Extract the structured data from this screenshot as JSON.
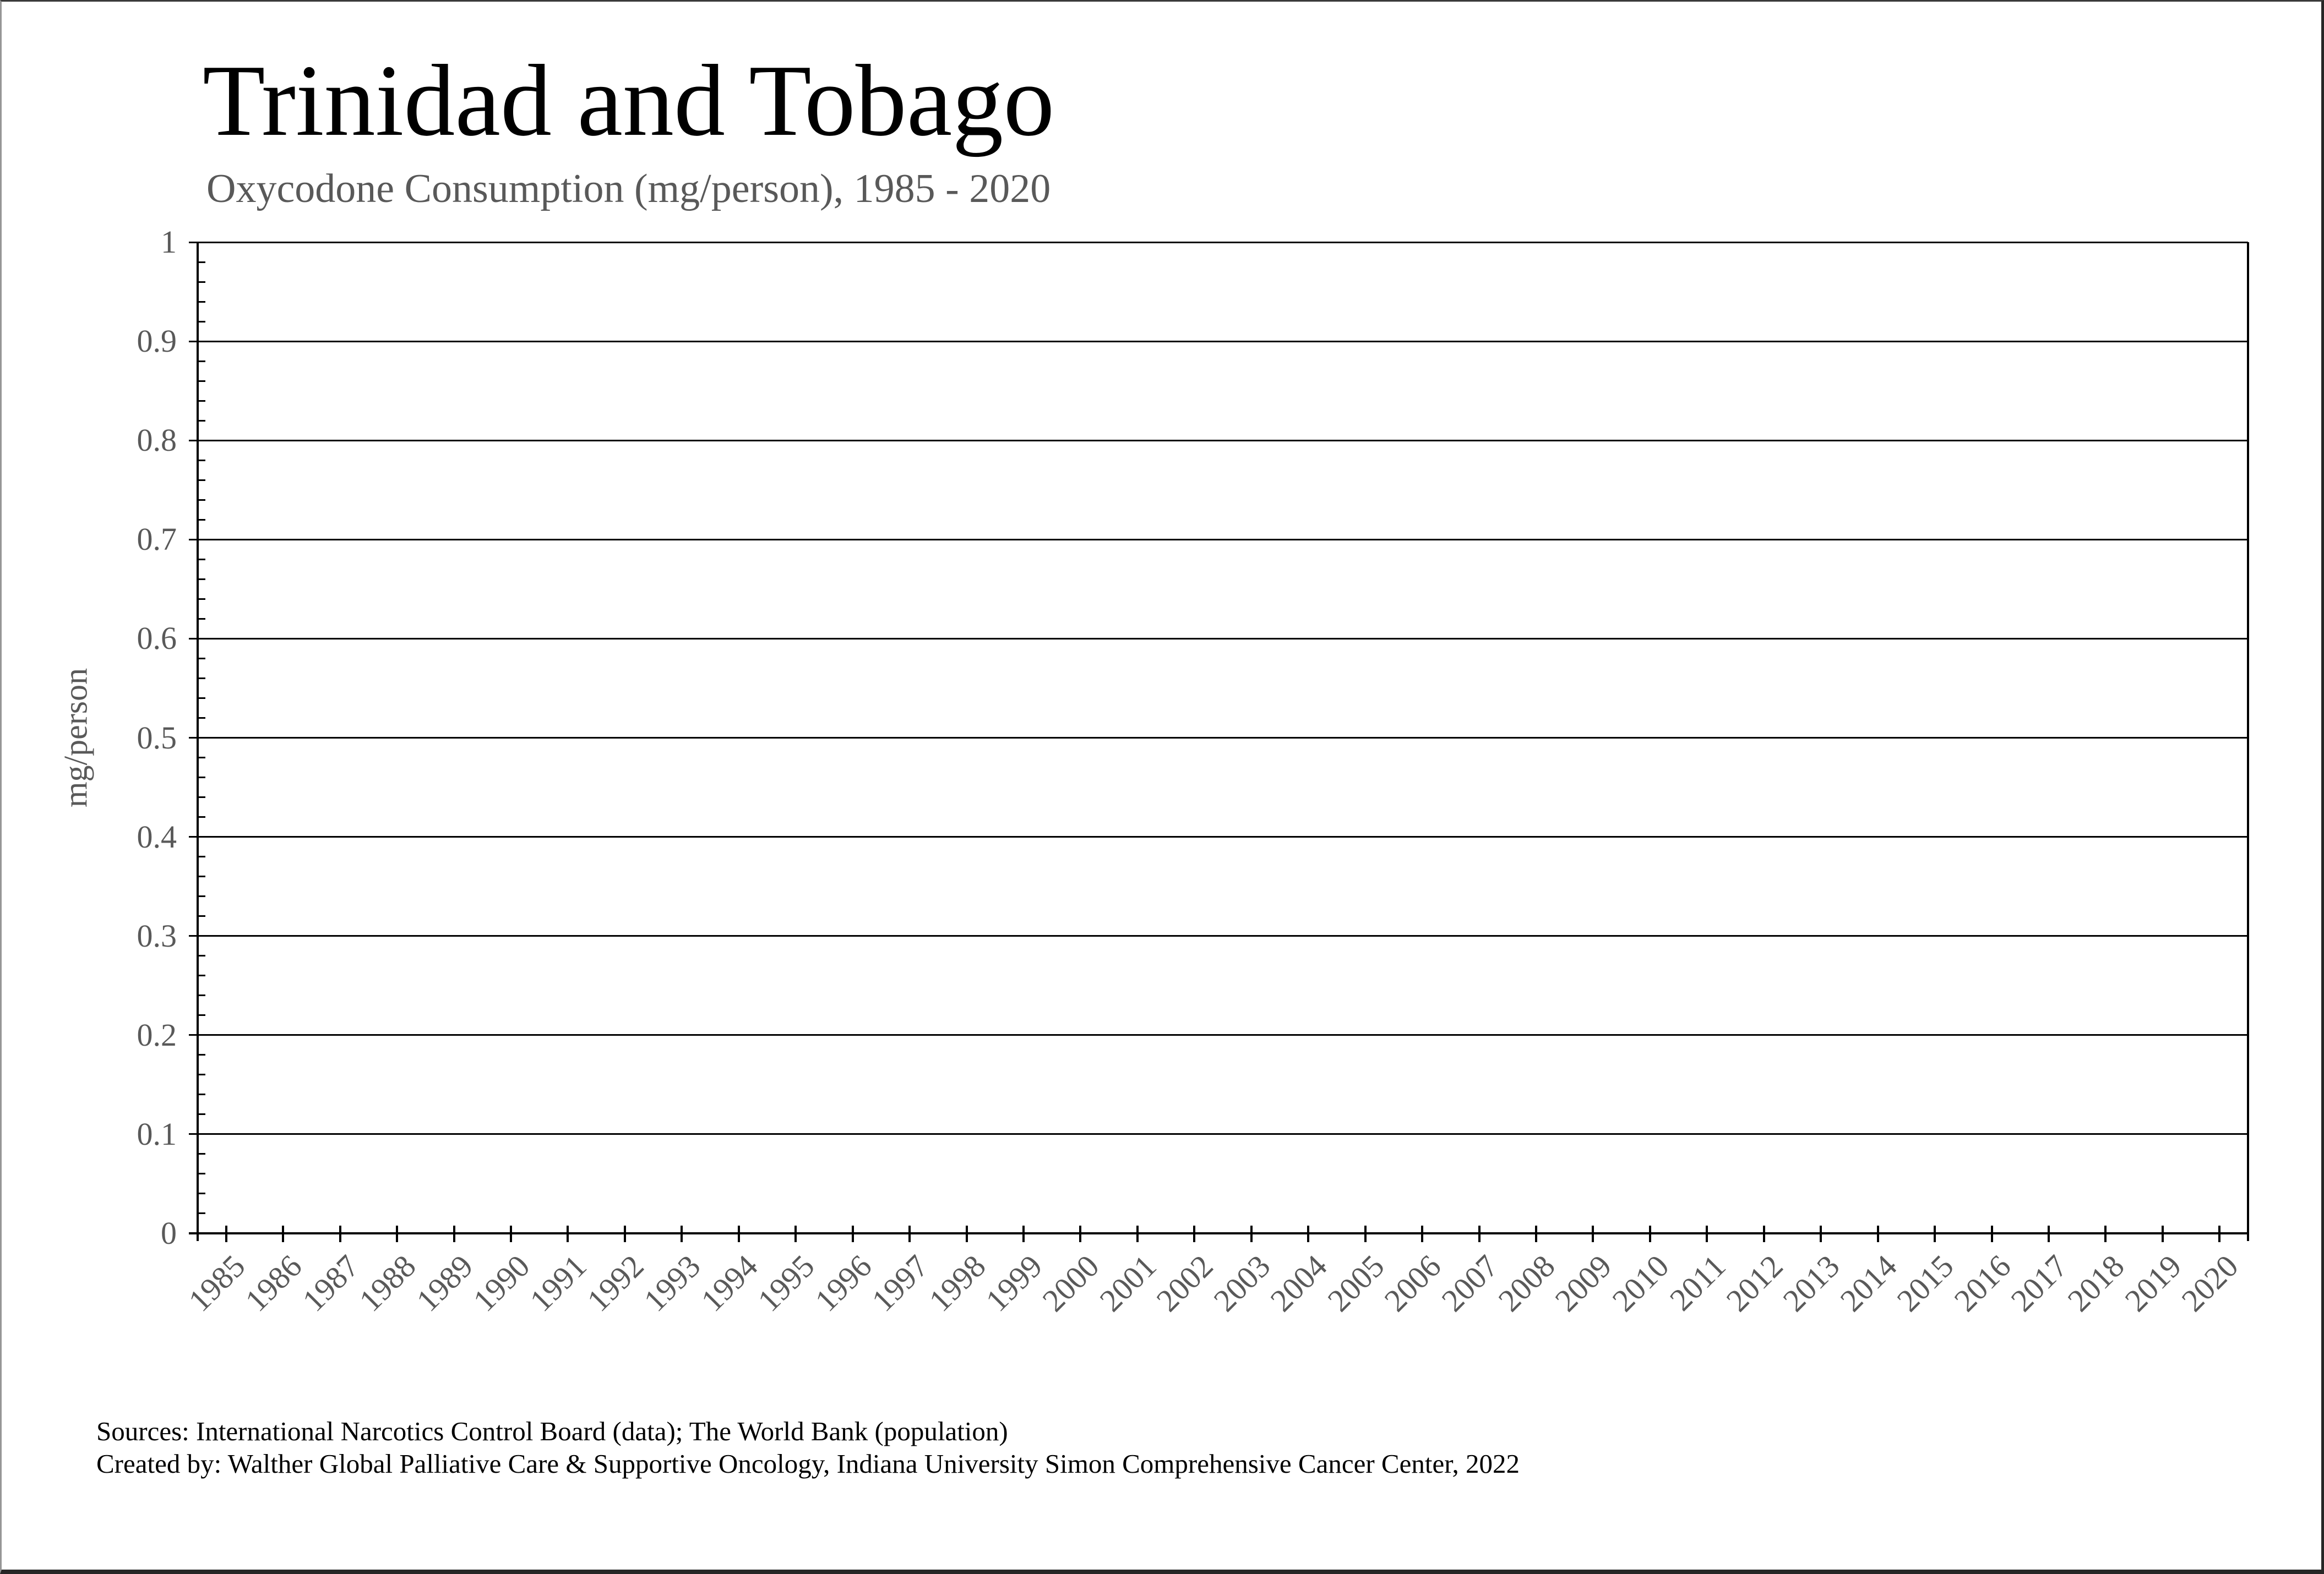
{
  "header": {
    "title": "Trinidad and Tobago",
    "subtitle": "Oxycodone Consumption (mg/person), 1985 - 2020"
  },
  "chart_data": {
    "type": "line",
    "title": "Trinidad and Tobago",
    "subtitle": "Oxycodone Consumption (mg/person), 1985 - 2020",
    "xlabel": "",
    "ylabel": "mg/person",
    "ylim": [
      0,
      1
    ],
    "y_tick_labels": [
      "1",
      "0.9",
      "0.8",
      "0.7",
      "0.6",
      "0.5",
      "0.4",
      "0.3",
      "0.2",
      "0.1",
      "0"
    ],
    "y_minor_ticks_per_interval": 4,
    "categories": [
      "1985",
      "1986",
      "1987",
      "1988",
      "1989",
      "1990",
      "1991",
      "1992",
      "1993",
      "1994",
      "1995",
      "1996",
      "1997",
      "1998",
      "1999",
      "2000",
      "2001",
      "2002",
      "2003",
      "2004",
      "2005",
      "2006",
      "2007",
      "2008",
      "2009",
      "2010",
      "2011",
      "2012",
      "2013",
      "2014",
      "2015",
      "2016",
      "2017",
      "2018",
      "2019",
      "2020"
    ],
    "series": [],
    "no_data_visible": true,
    "grid": "horizontal-major",
    "legend": "none",
    "colors": {
      "axis": "#000000",
      "gridline": "#000000",
      "tick_label_gray": "#595959",
      "title_black": "#000000"
    }
  },
  "footer": {
    "source_line1": "Sources: International Narcotics Control Board (data); The World Bank (population)",
    "source_line2": "Created by: Walther Global Palliative Care & Supportive Oncology, Indiana University Simon Comprehensive Cancer Center, 2022"
  }
}
